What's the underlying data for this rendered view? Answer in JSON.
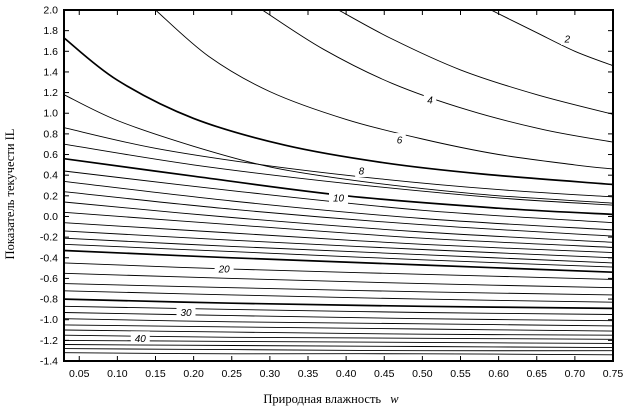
{
  "chart_data": {
    "type": "contour",
    "title": "",
    "xlabel": "Природная влажность",
    "xlabel_var": "w",
    "ylabel": "Показатель текучести IL",
    "xlim": [
      0.03,
      0.75
    ],
    "ylim": [
      -1.4,
      2.0
    ],
    "x_ticks": [
      "0.05",
      "0.10",
      "0.15",
      "0.20",
      "0.25",
      "0.30",
      "0.35",
      "0.40",
      "0.45",
      "0.50",
      "0.55",
      "0.60",
      "0.65",
      "0.70",
      "0.75"
    ],
    "y_ticks": [
      "2.0",
      "1.8",
      "1.6",
      "1.4",
      "1.2",
      "1.0",
      "0.8",
      "0.6",
      "0.4",
      "0.2",
      "0.0",
      "-0.2",
      "-0.4",
      "-0.6",
      "-0.8",
      "-1.0",
      "-1.2",
      "-1.4"
    ],
    "grid": false,
    "contour_labels": [
      {
        "text": "2",
        "x": 0.69,
        "y": 1.72
      },
      {
        "text": "4",
        "x": 0.51,
        "y": 1.13
      },
      {
        "text": "6",
        "x": 0.47,
        "y": 0.74
      },
      {
        "text": "8",
        "x": 0.42,
        "y": 0.44
      },
      {
        "text": "10",
        "x": 0.39,
        "y": 0.18
      },
      {
        "text": "20",
        "x": 0.24,
        "y": -0.51
      },
      {
        "text": "30",
        "x": 0.19,
        "y": -0.93
      },
      {
        "text": "40",
        "x": 0.13,
        "y": -1.18
      }
    ],
    "contours": [
      {
        "level": 2,
        "points": [
          [
            0.59,
            2.0
          ],
          [
            0.65,
            1.78
          ],
          [
            0.7,
            1.6
          ],
          [
            0.75,
            1.46
          ]
        ]
      },
      {
        "level": 3,
        "points": [
          [
            0.39,
            2.0
          ],
          [
            0.46,
            1.72
          ],
          [
            0.55,
            1.42
          ],
          [
            0.65,
            1.18
          ],
          [
            0.75,
            0.99
          ]
        ]
      },
      {
        "level": 4,
        "points": [
          [
            0.29,
            2.0
          ],
          [
            0.37,
            1.62
          ],
          [
            0.46,
            1.29
          ],
          [
            0.56,
            1.03
          ],
          [
            0.66,
            0.84
          ],
          [
            0.75,
            0.72
          ]
        ]
      },
      {
        "level": 5,
        "points": [
          [
            0.15,
            2.0
          ],
          [
            0.22,
            1.55
          ],
          [
            0.3,
            1.21
          ],
          [
            0.4,
            0.94
          ],
          [
            0.5,
            0.75
          ],
          [
            0.6,
            0.6
          ],
          [
            0.7,
            0.5
          ],
          [
            0.75,
            0.46
          ]
        ]
      },
      {
        "level": 6,
        "points": [
          [
            0.03,
            1.73
          ],
          [
            0.1,
            1.32
          ],
          [
            0.2,
            0.95
          ],
          [
            0.32,
            0.69
          ],
          [
            0.45,
            0.52
          ],
          [
            0.58,
            0.41
          ],
          [
            0.75,
            0.31
          ]
        ]
      },
      {
        "level": 7,
        "points": [
          [
            0.03,
            1.18
          ],
          [
            0.1,
            0.93
          ],
          [
            0.2,
            0.68
          ],
          [
            0.3,
            0.48
          ],
          [
            0.4,
            0.36
          ],
          [
            0.5,
            0.27
          ],
          [
            0.6,
            0.2
          ],
          [
            0.75,
            0.13
          ]
        ]
      },
      {
        "level": 8,
        "points": [
          [
            0.03,
            0.86
          ],
          [
            0.15,
            0.66
          ],
          [
            0.3,
            0.49
          ],
          [
            0.45,
            0.36
          ],
          [
            0.6,
            0.26
          ],
          [
            0.75,
            0.19
          ]
        ]
      },
      {
        "level": 9,
        "points": [
          [
            0.03,
            0.7
          ],
          [
            0.2,
            0.5
          ],
          [
            0.4,
            0.32
          ],
          [
            0.6,
            0.18
          ],
          [
            0.75,
            0.11
          ]
        ]
      },
      {
        "level": 10,
        "points": [
          [
            0.03,
            0.56
          ],
          [
            0.2,
            0.39
          ],
          [
            0.4,
            0.2
          ],
          [
            0.6,
            0.08
          ],
          [
            0.75,
            0.02
          ]
        ]
      },
      {
        "level": 11,
        "points": [
          [
            0.03,
            0.44
          ],
          [
            0.25,
            0.25
          ],
          [
            0.5,
            0.06
          ],
          [
            0.75,
            -0.06
          ]
        ]
      },
      {
        "level": 12,
        "points": [
          [
            0.03,
            0.34
          ],
          [
            0.25,
            0.15
          ],
          [
            0.5,
            -0.02
          ],
          [
            0.75,
            -0.13
          ]
        ]
      },
      {
        "level": 13,
        "points": [
          [
            0.03,
            0.24
          ],
          [
            0.25,
            0.07
          ],
          [
            0.5,
            -0.08
          ],
          [
            0.75,
            -0.19
          ]
        ]
      },
      {
        "level": 14,
        "points": [
          [
            0.03,
            0.14
          ],
          [
            0.25,
            -0.01
          ],
          [
            0.5,
            -0.15
          ],
          [
            0.75,
            -0.25
          ]
        ]
      },
      {
        "level": 15,
        "points": [
          [
            0.03,
            0.04
          ],
          [
            0.25,
            -0.08
          ],
          [
            0.5,
            -0.21
          ],
          [
            0.75,
            -0.3
          ]
        ]
      },
      {
        "level": 16,
        "points": [
          [
            0.03,
            -0.06
          ],
          [
            0.25,
            -0.16
          ],
          [
            0.5,
            -0.27
          ],
          [
            0.75,
            -0.35
          ]
        ]
      },
      {
        "level": 17,
        "points": [
          [
            0.03,
            -0.14
          ],
          [
            0.25,
            -0.23
          ],
          [
            0.5,
            -0.32
          ],
          [
            0.75,
            -0.4
          ]
        ]
      },
      {
        "level": 18,
        "points": [
          [
            0.03,
            -0.21
          ],
          [
            0.25,
            -0.29
          ],
          [
            0.5,
            -0.37
          ],
          [
            0.75,
            -0.45
          ]
        ]
      },
      {
        "level": 19,
        "points": [
          [
            0.03,
            -0.27
          ],
          [
            0.25,
            -0.34
          ],
          [
            0.5,
            -0.42
          ],
          [
            0.75,
            -0.49
          ]
        ]
      },
      {
        "level": 20,
        "points": [
          [
            0.03,
            -0.33
          ],
          [
            0.25,
            -0.4
          ],
          [
            0.5,
            -0.47
          ],
          [
            0.75,
            -0.54
          ]
        ]
      },
      {
        "level": 22,
        "points": [
          [
            0.03,
            -0.45
          ],
          [
            0.25,
            -0.51
          ],
          [
            0.5,
            -0.56
          ],
          [
            0.75,
            -0.61
          ]
        ]
      },
      {
        "level": 24,
        "points": [
          [
            0.03,
            -0.55
          ],
          [
            0.25,
            -0.6
          ],
          [
            0.5,
            -0.65
          ],
          [
            0.75,
            -0.69
          ]
        ]
      },
      {
        "level": 26,
        "points": [
          [
            0.03,
            -0.65
          ],
          [
            0.25,
            -0.69
          ],
          [
            0.5,
            -0.73
          ],
          [
            0.75,
            -0.76
          ]
        ]
      },
      {
        "level": 28,
        "points": [
          [
            0.03,
            -0.72
          ],
          [
            0.25,
            -0.76
          ],
          [
            0.5,
            -0.8
          ],
          [
            0.75,
            -0.83
          ]
        ]
      },
      {
        "level": 30,
        "points": [
          [
            0.03,
            -0.8
          ],
          [
            0.25,
            -0.84
          ],
          [
            0.5,
            -0.87
          ],
          [
            0.75,
            -0.89
          ]
        ]
      },
      {
        "level": 32,
        "points": [
          [
            0.03,
            -0.87
          ],
          [
            0.25,
            -0.9
          ],
          [
            0.5,
            -0.93
          ],
          [
            0.75,
            -0.95
          ]
        ]
      },
      {
        "level": 34,
        "points": [
          [
            0.03,
            -0.93
          ],
          [
            0.25,
            -0.96
          ],
          [
            0.5,
            -0.99
          ],
          [
            0.75,
            -1.01
          ]
        ]
      },
      {
        "level": 36,
        "points": [
          [
            0.03,
            -0.99
          ],
          [
            0.25,
            -1.02
          ],
          [
            0.5,
            -1.04
          ],
          [
            0.75,
            -1.06
          ]
        ]
      },
      {
        "level": 38,
        "points": [
          [
            0.03,
            -1.05
          ],
          [
            0.25,
            -1.07
          ],
          [
            0.5,
            -1.09
          ],
          [
            0.75,
            -1.11
          ]
        ]
      },
      {
        "level": 40,
        "points": [
          [
            0.03,
            -1.1
          ],
          [
            0.25,
            -1.12
          ],
          [
            0.5,
            -1.14
          ],
          [
            0.75,
            -1.15
          ]
        ]
      },
      {
        "level": 42,
        "points": [
          [
            0.03,
            -1.15
          ],
          [
            0.25,
            -1.17
          ],
          [
            0.5,
            -1.18
          ],
          [
            0.75,
            -1.19
          ]
        ]
      },
      {
        "level": 44,
        "points": [
          [
            0.03,
            -1.2
          ],
          [
            0.25,
            -1.21
          ],
          [
            0.5,
            -1.22
          ],
          [
            0.75,
            -1.23
          ]
        ]
      },
      {
        "level": 46,
        "points": [
          [
            0.03,
            -1.24
          ],
          [
            0.25,
            -1.25
          ],
          [
            0.5,
            -1.26
          ],
          [
            0.75,
            -1.27
          ]
        ]
      },
      {
        "level": 48,
        "points": [
          [
            0.03,
            -1.28
          ],
          [
            0.25,
            -1.29
          ],
          [
            0.5,
            -1.3
          ],
          [
            0.75,
            -1.3
          ]
        ]
      },
      {
        "level": 50,
        "points": [
          [
            0.03,
            -1.32
          ],
          [
            0.25,
            -1.33
          ],
          [
            0.5,
            -1.33
          ],
          [
            0.75,
            -1.34
          ]
        ]
      }
    ],
    "bold_levels": [
      6,
      10,
      20,
      30
    ]
  }
}
